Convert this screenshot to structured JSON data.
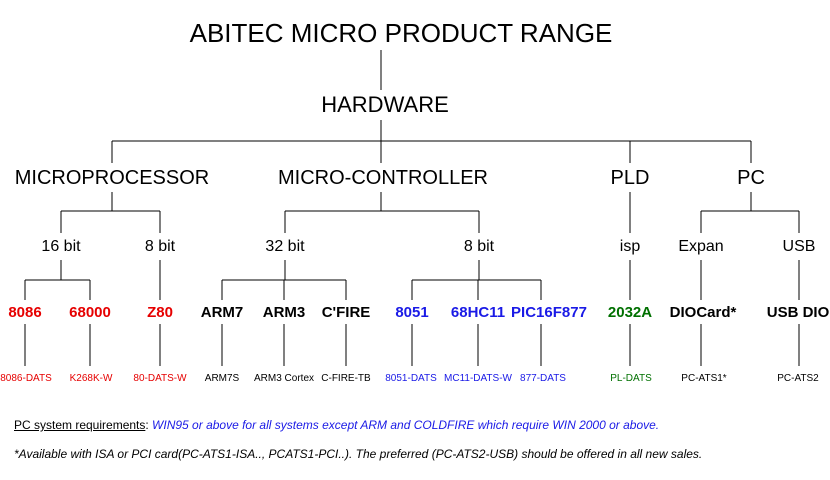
{
  "title": "ABITEC MICRO PRODUCT RANGE",
  "root": "HARDWARE",
  "categories": {
    "micro": "MICROPROCESSOR",
    "mcu": "MICRO-CONTROLLER",
    "pld": "PLD",
    "pc": "PC"
  },
  "groups": {
    "bit16": "16 bit",
    "bit8a": "8 bit",
    "bit32": "32 bit",
    "bit8b": "8 bit",
    "isp": "isp",
    "expan": "Expan",
    "usb": "USB"
  },
  "products": [
    {
      "label": "8086",
      "sub": "8086-DATS",
      "color": "red"
    },
    {
      "label": "68000",
      "sub": "K268K-W",
      "color": "red"
    },
    {
      "label": "Z80",
      "sub": "80-DATS-W",
      "color": "red"
    },
    {
      "label": "ARM7",
      "sub": "ARM7S",
      "color": "black"
    },
    {
      "label": "ARM3",
      "sub": "ARM3 Cortex",
      "color": "black"
    },
    {
      "label": "C'FIRE",
      "sub": "C-FIRE-TB",
      "color": "black"
    },
    {
      "label": "8051",
      "sub": "8051-DATS",
      "color": "blue"
    },
    {
      "label": "68HC11",
      "sub": "MC11-DATS-W",
      "color": "blue"
    },
    {
      "label": "PIC16F877",
      "sub": "877-DATS",
      "color": "blue"
    },
    {
      "label": "2032A",
      "sub": "PL-DATS",
      "color": "green"
    },
    {
      "label": "DIOCard*",
      "sub": "PC-ATS1*",
      "color": "black"
    },
    {
      "label": "USB DIO",
      "sub": "PC-ATS2",
      "color": "black"
    }
  ],
  "notes": {
    "req_label": "PC system requirements",
    "req_sep": ":",
    "req_text": " WIN95 or above for all systems except  ARM and COLDFIRE which require WIN 2000 or above.",
    "footnote": "*Available with ISA or PCI card(PC-ATS1-ISA.., PCATS1-PCI..).  The preferred (PC-ATS2-USB) should be offered in all new sales."
  }
}
